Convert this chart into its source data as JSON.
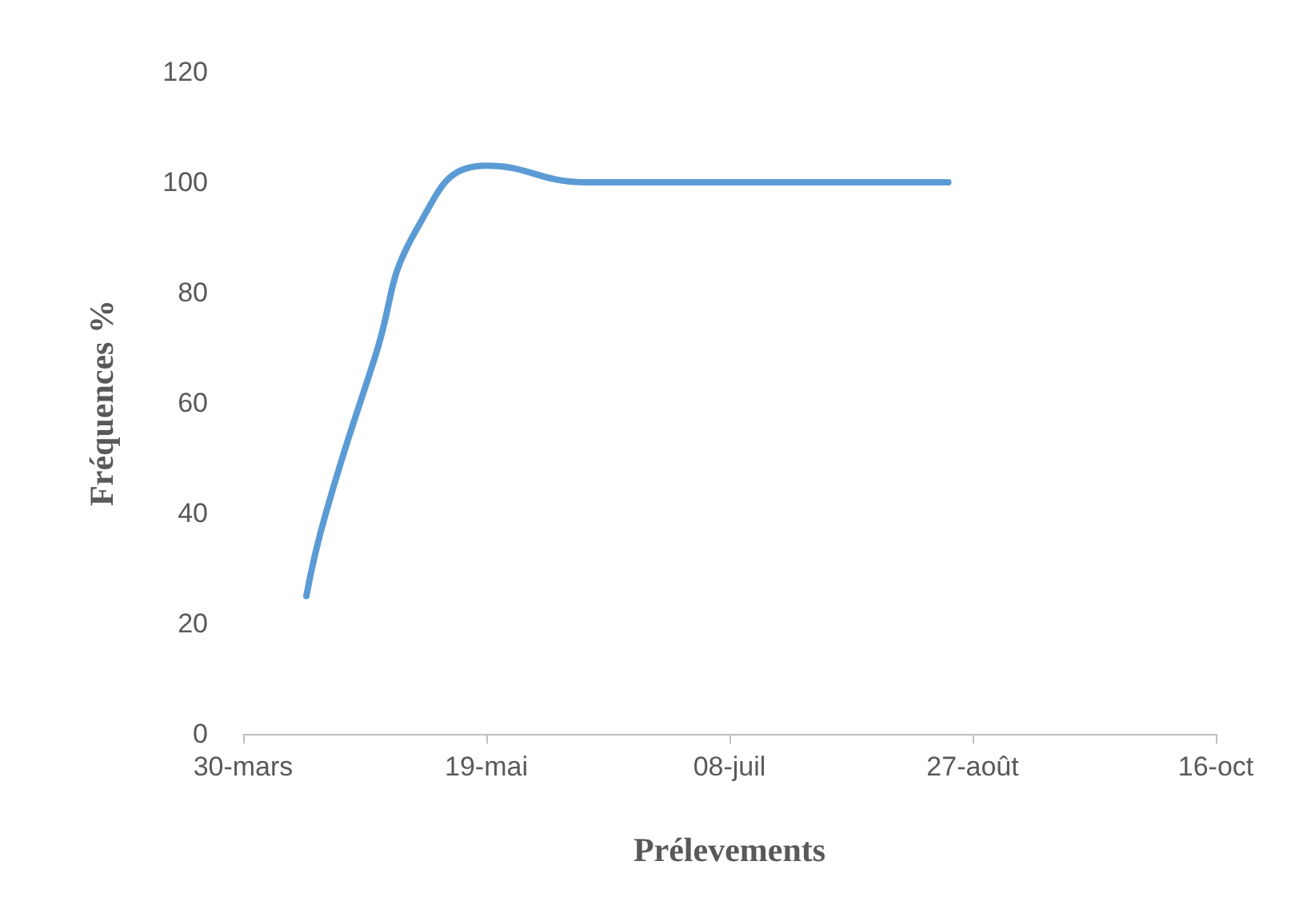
{
  "chart_data": {
    "type": "line",
    "xlabel": "Prélevements",
    "ylabel": "Fréquences %",
    "x": [
      "--04-12",
      "--04-16",
      "--04-26",
      "--05-05",
      "--05-19",
      "--06-09",
      "--08-22"
    ],
    "series": [
      {
        "color": "#5b9bd5",
        "values": [
          25,
          40,
          68,
          92,
          103,
          100,
          100
        ]
      }
    ],
    "xlim": [
      "--03-30",
      "--10-16"
    ],
    "xticks": [
      {
        "value": "--03-30",
        "label": "30-mars"
      },
      {
        "value": "--05-19",
        "label": "19-mai"
      },
      {
        "value": "--07-08",
        "label": "08-juil"
      },
      {
        "value": "--08-27",
        "label": "27-août"
      },
      {
        "value": "--10-16",
        "label": "16-oct"
      }
    ],
    "ylim": [
      0,
      120
    ],
    "yticks": [
      0,
      20,
      40,
      60,
      80,
      100,
      120
    ],
    "grid": false,
    "marker": "none"
  }
}
